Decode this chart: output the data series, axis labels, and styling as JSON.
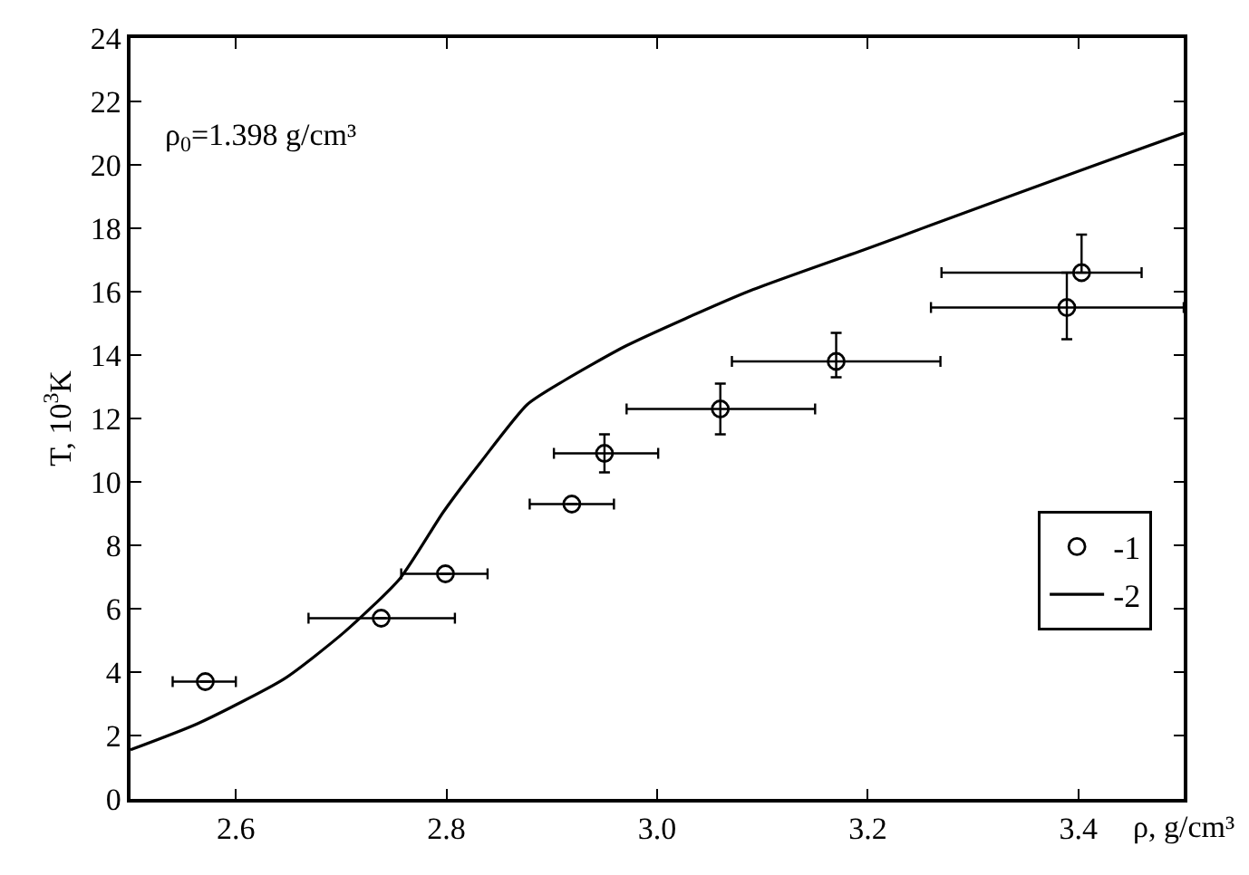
{
  "chart_data": {
    "type": "scatter",
    "xlabel": "ρ, g/cm³",
    "ylabel": "T, 10$^{3}$K",
    "annotations": [
      "ρ$_{0}$=1.398 g/cm³"
    ],
    "xlim": [
      2.5,
      3.5
    ],
    "ylim": [
      0,
      24
    ],
    "xticks": [
      2.6,
      2.8,
      {
        "value": 3.0,
        "label": "3.0"
      },
      3.2,
      3.4
    ],
    "yticks": [
      0,
      2,
      4,
      6,
      8,
      10,
      12,
      14,
      16,
      18,
      20,
      22,
      24
    ],
    "legend": "right",
    "series": [
      {
        "name": "-1",
        "type": "scatter",
        "marker": "circle",
        "color": "#000000",
        "x": [
          2.571,
          2.738,
          2.799,
          2.919,
          2.95,
          3.06,
          3.17,
          3.389,
          3.403
        ],
        "values": [
          3.7,
          5.7,
          7.1,
          9.3,
          10.9,
          12.3,
          13.8,
          15.5,
          16.6
        ],
        "errors": [
          null,
          null,
          null,
          null,
          [
            10.3,
            11.5
          ],
          [
            11.5,
            13.1
          ],
          [
            13.3,
            14.7
          ],
          [
            14.5,
            16.6
          ],
          [
            16.6,
            17.8
          ]
        ],
        "xerrors": [
          [
            2.54,
            2.6
          ],
          [
            2.669,
            2.808
          ],
          [
            2.757,
            2.839
          ],
          [
            2.879,
            2.959
          ],
          [
            2.902,
            3.001
          ],
          [
            2.971,
            3.15
          ],
          [
            3.071,
            3.269
          ],
          [
            3.26,
            3.5
          ],
          [
            3.27,
            3.46
          ]
        ]
      },
      {
        "name": "-2",
        "type": "line",
        "marker": "none",
        "line_style": "solid",
        "color": "#000000",
        "x": [
          2.5,
          2.564,
          2.646,
          2.703,
          2.756,
          2.797,
          2.832,
          2.877,
          2.912,
          2.971,
          3.086,
          3.203,
          3.26,
          3.4,
          3.5
        ],
        "values": [
          1.55,
          2.38,
          3.79,
          5.26,
          6.96,
          9.05,
          10.6,
          12.45,
          13.2,
          14.3,
          16.0,
          17.4,
          18.1,
          19.8,
          21.0
        ]
      }
    ]
  }
}
